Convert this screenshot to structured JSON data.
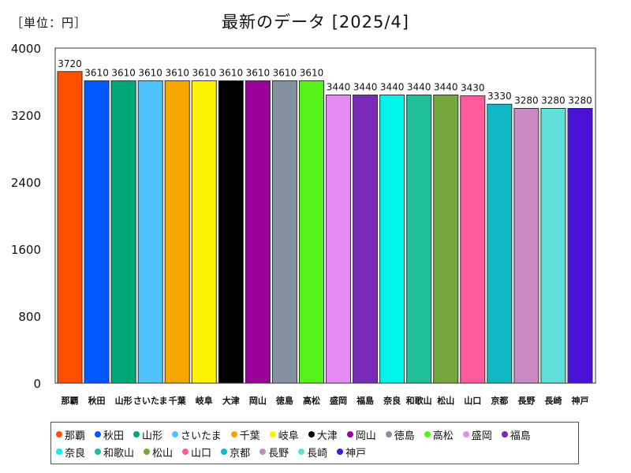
{
  "unit_label": "［単位：円］",
  "chart_data": {
    "type": "bar",
    "title": "最新のデータ [2025/4]",
    "xlabel": "",
    "ylabel": "",
    "ylim": [
      0,
      4000
    ],
    "yticks": [
      0,
      800,
      1600,
      2400,
      3200,
      4000
    ],
    "categories": [
      "那覇",
      "秋田",
      "山形",
      "さいたま",
      "千葉",
      "岐阜",
      "大津",
      "岡山",
      "徳島",
      "高松",
      "盛岡",
      "福島",
      "奈良",
      "和歌山",
      "松山",
      "山口",
      "京都",
      "長野",
      "長崎",
      "神戸"
    ],
    "values": [
      3720,
      3610,
      3610,
      3610,
      3610,
      3610,
      3610,
      3610,
      3610,
      3610,
      3440,
      3440,
      3440,
      3440,
      3440,
      3430,
      3330,
      3280,
      3280,
      3280
    ],
    "colors": [
      "#ff4f00",
      "#0059ff",
      "#00a878",
      "#4fc3ff",
      "#f7a600",
      "#fff200",
      "#000000",
      "#9a009a",
      "#8391a0",
      "#58f21b",
      "#e58af2",
      "#7b29b8",
      "#00f5ea",
      "#1fbf9a",
      "#77a53e",
      "#ff5b9b",
      "#0fb8c4",
      "#c98ac4",
      "#5fe0d8",
      "#4a12d8"
    ]
  }
}
